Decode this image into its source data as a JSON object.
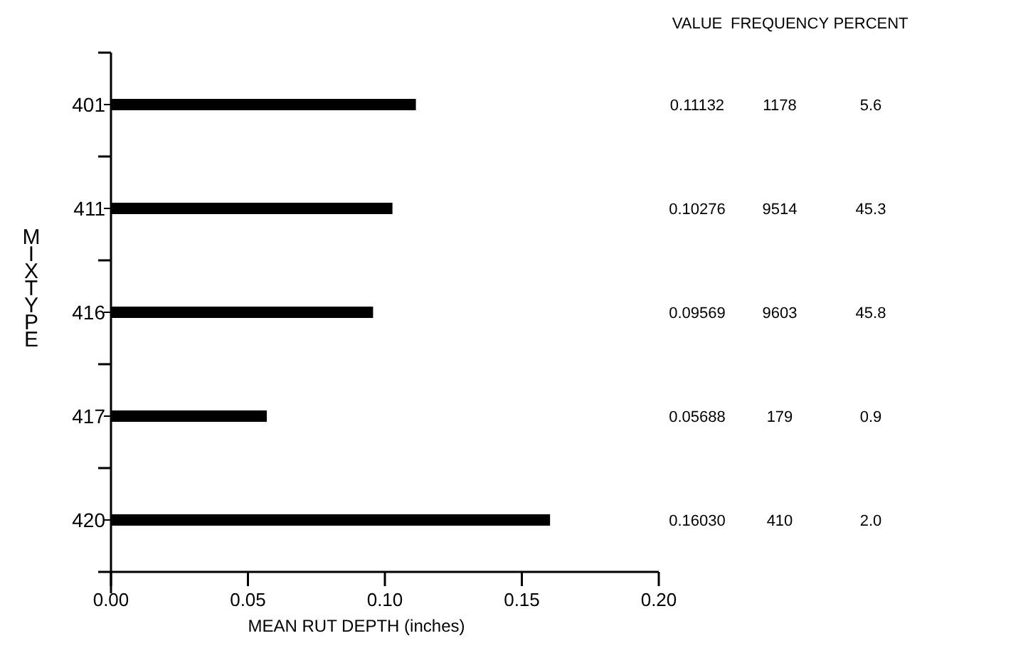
{
  "chart_data": {
    "type": "bar",
    "orientation": "horizontal",
    "xlabel": "MEAN RUT DEPTH (inches)",
    "ylabel": "MIX TYPE",
    "categories": [
      "401",
      "411",
      "416",
      "417",
      "420"
    ],
    "values": [
      0.11132,
      0.10276,
      0.09569,
      0.05688,
      0.1603
    ],
    "value_labels": [
      "0.11132",
      "0.10276",
      "0.09569",
      "0.05688",
      "0.16030"
    ],
    "color": "#000000",
    "xlim": [
      0,
      0.2
    ],
    "xticks": [
      {
        "value": 0,
        "label": "0.00"
      },
      {
        "value": 0.05,
        "label": "0.05"
      },
      {
        "value": 0.1,
        "label": "0.10"
      },
      {
        "value": 0.15,
        "label": "0.15"
      },
      {
        "value": 0.2,
        "label": "0.20"
      }
    ],
    "annotations": [
      "VALUE",
      "FREQUENCY",
      "PERCENT",
      "1178",
      "5.6",
      "9514",
      "45.3",
      "9603",
      "45.8",
      "179",
      "0.9",
      "410",
      "2.0"
    ]
  }
}
